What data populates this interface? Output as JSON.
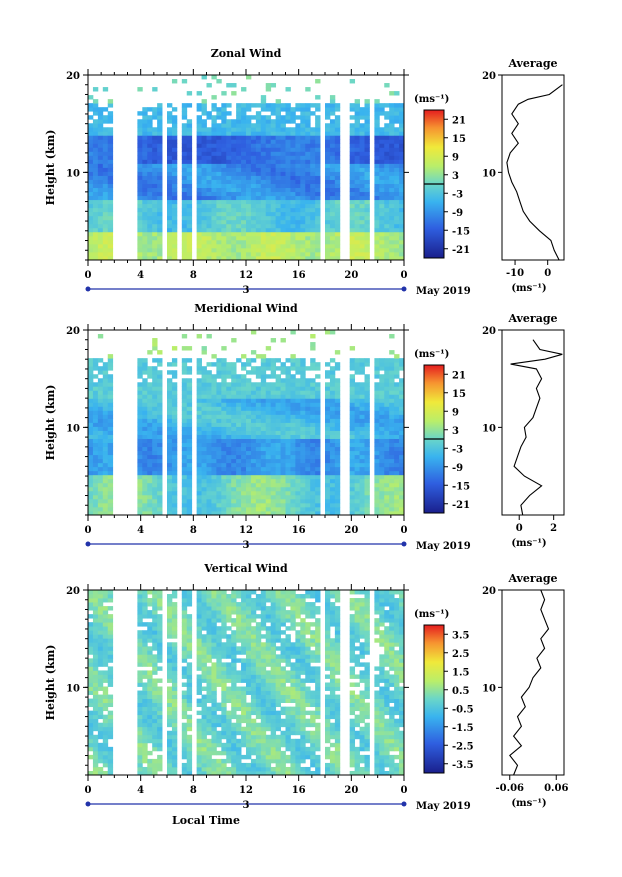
{
  "month_label": "May 2019",
  "day_label": "3",
  "xlabel": "Local Time",
  "ylabel": "Height (km)",
  "unit_label": "(ms⁻¹)",
  "avg_unit_label": "(ms⁻¹)",
  "avg_title": "Average",
  "chart_data": [
    {
      "type": "heatmap",
      "title": "Zonal Wind",
      "xlabel": "",
      "ylabel": "Height (km)",
      "x_ticks": [
        "0",
        "4",
        "8",
        "12",
        "16",
        "20",
        "0"
      ],
      "xlim": [
        0,
        24
      ],
      "y_ticks": [
        "10",
        "20"
      ],
      "ylim": [
        1,
        20
      ],
      "colorbar_ticks": [
        "21",
        "15",
        "9",
        "3",
        "-3",
        "-9",
        "-15",
        "-21"
      ],
      "colorbar_range": [
        -24,
        24
      ],
      "gaps_hours": [
        [
          2.0,
          3.8
        ],
        [
          5.6,
          6.0
        ],
        [
          6.6,
          7.2
        ],
        [
          7.8,
          8.2
        ],
        [
          17.5,
          18.0
        ],
        [
          19.3,
          19.7
        ],
        [
          21.3,
          21.6
        ]
      ],
      "average_profile": {
        "title": "Average",
        "x_ticks": [
          "-10",
          "0"
        ],
        "xlim": [
          -14,
          5
        ],
        "y_ticks": [
          "10",
          "20"
        ],
        "height_km": [
          1,
          2,
          3,
          4,
          5,
          6,
          7,
          8,
          9,
          10,
          11,
          12,
          13,
          14,
          15,
          16,
          17,
          17.5,
          18,
          19
        ],
        "u_ms": [
          3.5,
          2.0,
          1.0,
          -2.5,
          -5.5,
          -7.5,
          -8.5,
          -9.5,
          -11.0,
          -12.0,
          -12.5,
          -11.5,
          -9.0,
          -11.0,
          -9.0,
          -11.0,
          -9.0,
          -6.0,
          0.5,
          4.5
        ]
      }
    },
    {
      "type": "heatmap",
      "title": "Meridional Wind",
      "xlabel": "",
      "ylabel": "Height (km)",
      "x_ticks": [
        "0",
        "4",
        "8",
        "12",
        "16",
        "20",
        "0"
      ],
      "xlim": [
        0,
        24
      ],
      "y_ticks": [
        "10",
        "20"
      ],
      "ylim": [
        1,
        20
      ],
      "colorbar_ticks": [
        "21",
        "15",
        "9",
        "3",
        "-3",
        "-9",
        "-15",
        "-21"
      ],
      "colorbar_range": [
        -24,
        24
      ],
      "gaps_hours": [
        [
          2.0,
          3.8
        ],
        [
          5.6,
          6.0
        ],
        [
          6.6,
          7.2
        ],
        [
          7.8,
          8.2
        ],
        [
          17.5,
          18.0
        ],
        [
          19.3,
          19.7
        ],
        [
          21.3,
          21.6
        ]
      ],
      "average_profile": {
        "title": "Average",
        "x_ticks": [
          "0",
          "2"
        ],
        "xlim": [
          -1,
          2.6
        ],
        "y_ticks": [
          "10",
          "20"
        ],
        "height_km": [
          1,
          2,
          3,
          4,
          5,
          6,
          7,
          8,
          9,
          10,
          11,
          12,
          13,
          14,
          15,
          16,
          16.5,
          17,
          17.5,
          18,
          19
        ],
        "v_ms": [
          0.2,
          0.1,
          0.6,
          1.3,
          0.3,
          -0.3,
          -0.1,
          0.1,
          0.4,
          0.3,
          0.8,
          1.0,
          1.2,
          1.0,
          1.3,
          1.0,
          -0.5,
          1.5,
          2.5,
          1.2,
          0.8
        ]
      }
    },
    {
      "type": "heatmap",
      "title": "Vertical Wind",
      "xlabel": "Local Time",
      "ylabel": "Height (km)",
      "x_ticks": [
        "0",
        "4",
        "8",
        "12",
        "16",
        "20",
        "0"
      ],
      "xlim": [
        0,
        24
      ],
      "y_ticks": [
        "10",
        "20"
      ],
      "ylim": [
        1,
        20
      ],
      "colorbar_ticks": [
        "3.5",
        "2.5",
        "1.5",
        "0.5",
        "-0.5",
        "-1.5",
        "-2.5",
        "-3.5"
      ],
      "colorbar_range": [
        -4,
        4
      ],
      "gaps_hours": [
        [
          2.0,
          3.8
        ],
        [
          5.6,
          6.0
        ],
        [
          6.6,
          7.2
        ],
        [
          7.8,
          8.2
        ],
        [
          17.5,
          18.0
        ],
        [
          19.3,
          19.7
        ],
        [
          21.3,
          21.6
        ]
      ],
      "average_profile": {
        "title": "Average",
        "x_ticks": [
          "-0.06",
          "0.06"
        ],
        "xlim": [
          -0.08,
          0.08
        ],
        "y_ticks": [
          "10",
          "20"
        ],
        "height_km": [
          1,
          2,
          3,
          4,
          5,
          6,
          7,
          8,
          9,
          10,
          11,
          12,
          13,
          14,
          15,
          16,
          17,
          18,
          19,
          20
        ],
        "w_ms": [
          -0.05,
          -0.04,
          -0.06,
          -0.03,
          -0.05,
          -0.03,
          -0.04,
          -0.02,
          -0.03,
          -0.01,
          0.0,
          0.02,
          0.01,
          0.03,
          0.02,
          0.04,
          0.03,
          0.02,
          0.03,
          0.02
        ]
      }
    }
  ]
}
